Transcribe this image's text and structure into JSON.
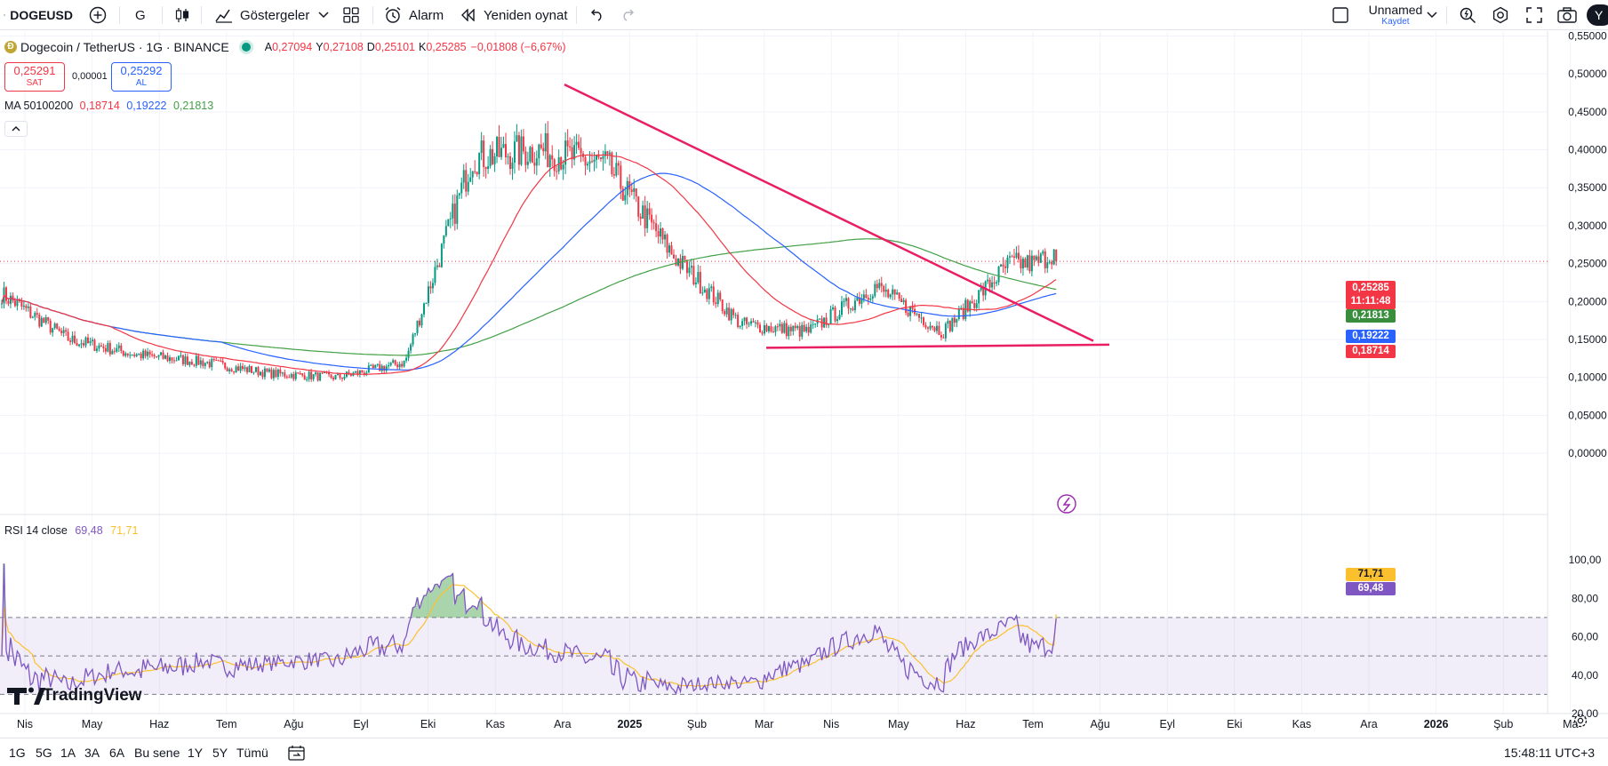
{
  "toolbar": {
    "symbol": "DOGEUSD",
    "interval": "G",
    "indicators_label": "Göstergeler",
    "alert_label": "Alarm",
    "replay_label": "Yeniden oynat",
    "layout_name": "Unnamed",
    "save_label": "Kaydet",
    "avatar_initial": "Y"
  },
  "legend": {
    "icon": "dogecoin-icon",
    "title": "Dogecoin / TetherUS · 1G · BINANCE",
    "o_label": "A",
    "o_val": "0,27094",
    "h_label": "Y",
    "h_val": "0,27108",
    "l_label": "D",
    "l_val": "0,25101",
    "c_label": "K",
    "c_val": "0,25285",
    "change": "−0,01808 (−6,67%)",
    "sell_price": "0,25291",
    "sell_label": "SAT",
    "spread": "0,00001",
    "buy_price": "0,25292",
    "buy_label": "AL",
    "ma_label": "MA 50100200",
    "ma50": "0,18714",
    "ma100": "0,19222",
    "ma200": "0,21813",
    "rsi_label": "RSI 14 close",
    "rsi_val": "69,48",
    "rsi_ma": "71,71"
  },
  "price_axis_ticks": [
    "0,55000",
    "0,50000",
    "0,45000",
    "0,40000",
    "0,35000",
    "0,30000",
    "0,25000",
    "0,20000",
    "0,15000",
    "0,10000",
    "0,05000",
    "0,00000"
  ],
  "rsi_axis_ticks": [
    "100,00",
    "80,00",
    "60,00",
    "40,00",
    "20,00"
  ],
  "time_axis_labels": [
    "Nis",
    "May",
    "Haz",
    "Tem",
    "Ağu",
    "Eyl",
    "Eki",
    "Kas",
    "Ara",
    "2025",
    "Şub",
    "Mar",
    "Nis",
    "May",
    "Haz",
    "Tem",
    "Ağu",
    "Eyl",
    "Eki",
    "Kas",
    "Ara",
    "2026",
    "Şub",
    "Ma"
  ],
  "price_tags": {
    "last": "0,25285",
    "countdown": "11:11:48",
    "ma200": "0,21813",
    "ma100": "0,19222",
    "ma50": "0,18714",
    "rsi_ma": "71,71",
    "rsi": "69,48"
  },
  "colors": {
    "up": "#089981",
    "down": "#f23645",
    "ma50": "#f23645",
    "ma100": "#2962ff",
    "ma200": "#43a047",
    "rsi": "#7e57c2",
    "rsi_ma": "#fbc02d",
    "trendline": "#e91e63"
  },
  "watermark": "TradingView",
  "bottom": {
    "ranges": [
      "1G",
      "5G",
      "1A",
      "3A",
      "6A",
      "Bu sene",
      "1Y",
      "5Y",
      "Tümü"
    ],
    "clock": "15:48:11 UTC+3"
  },
  "chart_data": {
    "type": "candlestick",
    "symbol": "Dogecoin / TetherUS",
    "interval": "1G",
    "ylim": [
      0,
      0.55
    ],
    "last_close": 0.25285,
    "close_approx": [
      {
        "date": "2024-04",
        "value": 0.21
      },
      {
        "date": "2024-05",
        "value": 0.15
      },
      {
        "date": "2024-06",
        "value": 0.13
      },
      {
        "date": "2024-07",
        "value": 0.12
      },
      {
        "date": "2024-08",
        "value": 0.105
      },
      {
        "date": "2024-09",
        "value": 0.1
      },
      {
        "date": "2024-10",
        "value": 0.12
      },
      {
        "date": "2024-11",
        "value": 0.39
      },
      {
        "date": "2024-12",
        "value": 0.4
      },
      {
        "date": "2025-01",
        "value": 0.38
      },
      {
        "date": "2025-02",
        "value": 0.26
      },
      {
        "date": "2025-03",
        "value": 0.17
      },
      {
        "date": "2025-04",
        "value": 0.16
      },
      {
        "date": "2025-05",
        "value": 0.22
      },
      {
        "date": "2025-06",
        "value": 0.16
      },
      {
        "date": "2025-07",
        "value": 0.25
      }
    ],
    "moving_averages": [
      {
        "name": "MA 50",
        "last": 0.18714
      },
      {
        "name": "MA 100",
        "last": 0.19222
      },
      {
        "name": "MA 200",
        "last": 0.21813
      }
    ],
    "rsi": {
      "period": 14,
      "last": 69.48,
      "ma": 71.71,
      "ylim": [
        20,
        100
      ],
      "bands": [
        30,
        50,
        70
      ]
    }
  }
}
